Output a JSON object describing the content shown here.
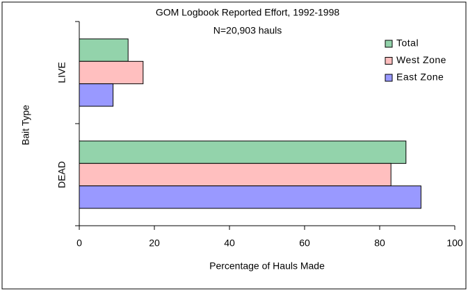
{
  "chart_data": {
    "type": "hbar",
    "title": "GOM Logbook Reported Effort, 1992-1998",
    "subtitle": "N=20,903 hauls",
    "x_label": "Percentage of Hauls Made",
    "y_label": "Bait Type",
    "categories": [
      "LIVE",
      "DEAD"
    ],
    "series": [
      {
        "name": "Total",
        "color": "#93d3ab",
        "values": [
          13,
          87
        ]
      },
      {
        "name": "West Zone",
        "color": "#ffbfbf",
        "values": [
          17,
          83
        ]
      },
      {
        "name": "East Zone",
        "color": "#9999ff",
        "values": [
          9,
          91
        ]
      }
    ],
    "xlim": [
      0,
      100
    ],
    "xticks": [
      0,
      20,
      40,
      60,
      80,
      100
    ],
    "legend": "upper right"
  }
}
